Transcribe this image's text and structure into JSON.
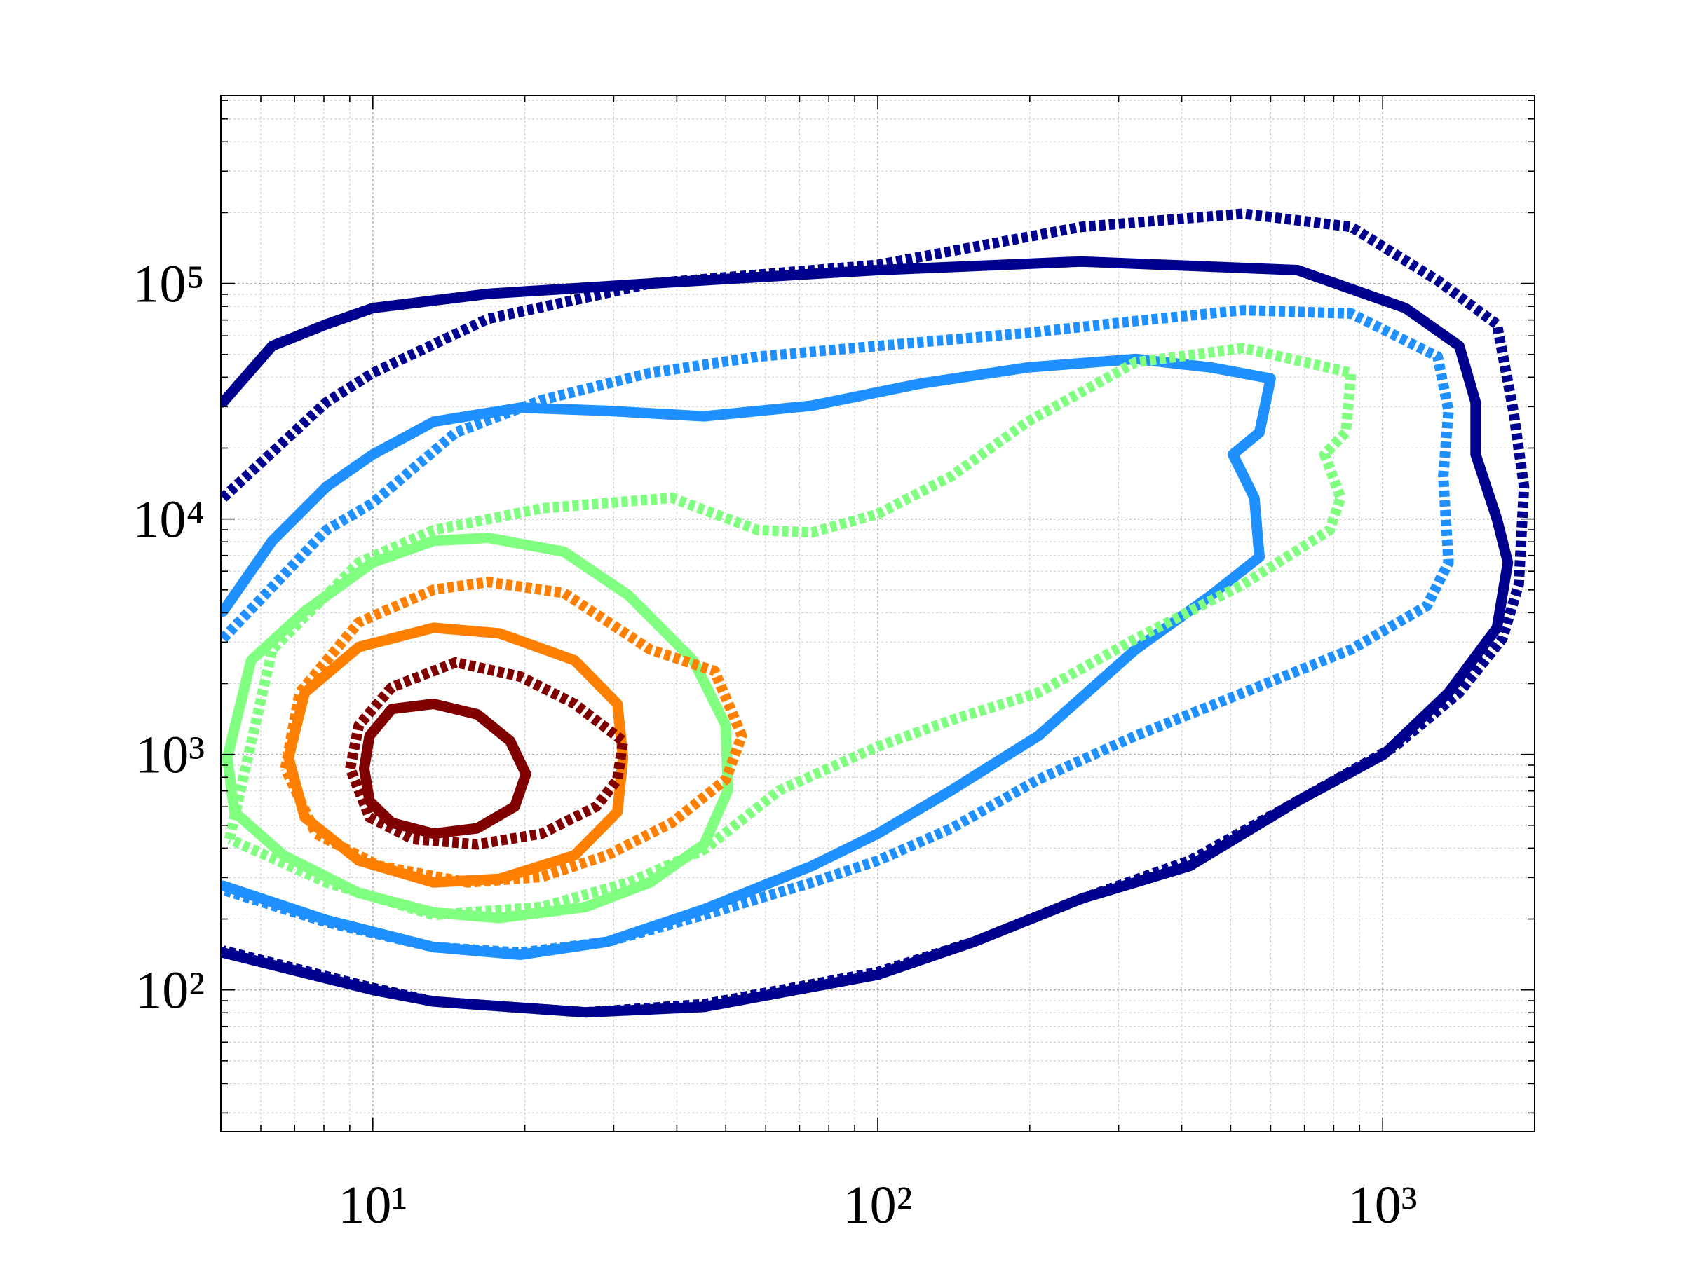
{
  "chart_data": {
    "type": "line",
    "xscale": "log",
    "yscale": "log",
    "xlim": [
      5,
      2000
    ],
    "ylim": [
      25,
      630000
    ],
    "xticks": [
      {
        "value": 10,
        "label": "10¹"
      },
      {
        "value": 100,
        "label": "10²"
      },
      {
        "value": 1000,
        "label": "10³"
      }
    ],
    "yticks": [
      {
        "value": 100,
        "label": "10²"
      },
      {
        "value": 1000,
        "label": "10³"
      },
      {
        "value": 10000,
        "label": "10⁴"
      },
      {
        "value": 100000,
        "label": "10⁵"
      }
    ],
    "xminorticks": [
      6,
      7,
      8,
      9,
      20,
      30,
      40,
      50,
      60,
      70,
      80,
      90,
      200,
      300,
      400,
      500,
      600,
      700,
      800,
      900
    ],
    "yminorticks": [
      30,
      40,
      50,
      60,
      70,
      80,
      90,
      200,
      300,
      400,
      500,
      600,
      700,
      800,
      900,
      2000,
      3000,
      4000,
      5000,
      6000,
      7000,
      8000,
      9000,
      20000,
      30000,
      40000,
      50000,
      60000,
      70000,
      80000,
      90000,
      200000,
      300000,
      400000,
      500000,
      600000
    ],
    "grid": true,
    "minor_grid": true,
    "series": [
      {
        "color": "#00008f",
        "style": "solid",
        "x": [
          5.05,
          6.32,
          8.09,
          10,
          16.9,
          35.4,
          100,
          253,
          678,
          1109,
          1418,
          1528,
          1528,
          1684,
          1770,
          1684,
          1350,
          1005,
          678,
          415,
          253,
          155,
          100,
          45.3,
          26.4,
          13.2,
          10,
          5.05
        ],
        "values": [
          31300,
          54300,
          67100,
          78700,
          90400,
          100000,
          114000,
          124000,
          114000,
          78700,
          54300,
          31300,
          18800,
          9980,
          6530,
          3450,
          1830,
          1000,
          634,
          336,
          244,
          160,
          116,
          84.7,
          80.3,
          89.3,
          100,
          144
        ]
      },
      {
        "color": "#00008f",
        "style": "dashed",
        "x": [
          5.05,
          8.09,
          10,
          16.9,
          35.4,
          100,
          253,
          530,
          866,
          1285,
          1684,
          1815,
          1905,
          1860,
          1726,
          1418,
          1057,
          678,
          415,
          253,
          155,
          100,
          45.3,
          26.4,
          13.2,
          10,
          5.05
        ],
        "values": [
          12300,
          31300,
          41700,
          70800,
          100000,
          120000,
          174000,
          198000,
          174000,
          103000,
          67100,
          28800,
          13700,
          5280,
          3100,
          1830,
          1080,
          634,
          354,
          244,
          160,
          119,
          87,
          80.3,
          89.3,
          102,
          147
        ]
      },
      {
        "color": "#1e90ff",
        "style": "solid",
        "x": [
          5.05,
          6.32,
          8.09,
          10,
          13.2,
          19.6,
          29.1,
          45.3,
          74.1,
          121,
          198,
          324,
          457,
          600,
          570,
          505,
          557,
          570,
          457,
          324,
          208,
          140,
          100,
          74.1,
          45.3,
          29.1,
          19.6,
          13.2,
          8.09,
          5.05
        ],
        "values": [
          4050,
          8070,
          13700,
          18800,
          25900,
          29700,
          28800,
          27300,
          30300,
          37500,
          44000,
          47800,
          44000,
          39500,
          23300,
          18800,
          12300,
          6890,
          4740,
          2790,
          1200,
          705,
          461,
          336,
          220,
          160,
          141,
          152,
          198,
          277
        ]
      },
      {
        "color": "#1e90ff",
        "style": "dashed",
        "x": [
          5.05,
          8.09,
          10,
          14.6,
          21.6,
          35.4,
          57.9,
          100,
          198,
          324,
          530,
          866,
          1285,
          1350,
          1318,
          1350,
          1224,
          866,
          530,
          324,
          208,
          140,
          100,
          74.1,
          45.3,
          29.1,
          19.6,
          13.2,
          8.09,
          5.05
        ],
        "values": [
          3100,
          8970,
          11700,
          23300,
          32000,
          41700,
          48900,
          54300,
          61700,
          69300,
          77100,
          74600,
          48900,
          28800,
          15200,
          6530,
          4280,
          2790,
          1830,
          1200,
          783,
          486,
          354,
          286,
          208,
          160,
          144,
          152,
          194,
          266
        ]
      },
      {
        "color": "#80ff80",
        "style": "solid",
        "x": [
          5.15,
          5.74,
          7.33,
          10,
          13.2,
          16.9,
          23.9,
          32.1,
          43.1,
          50.0,
          50.5,
          45.3,
          35.4,
          26.4,
          17.8,
          13.2,
          9.38,
          6.65,
          5.32,
          5.15
        ],
        "values": [
          969,
          2510,
          4050,
          6530,
          8070,
          8320,
          7260,
          4740,
          2510,
          1330,
          705,
          415,
          286,
          225,
          202,
          213,
          258,
          373,
          570,
          969
        ]
      },
      {
        "color": "#80ff80",
        "style": "dashed",
        "x": [
          5.2,
          6.32,
          9.38,
          13.2,
          21.6,
          39.1,
          57.9,
          74.1,
          100,
          140,
          198,
          324,
          530,
          866,
          845,
          767,
          826,
          785,
          530,
          324,
          208,
          140,
          100,
          63.9,
          45.3,
          32.1,
          21.6,
          13.2,
          8.09,
          5.2
        ],
        "values": [
          437,
          2790,
          6530,
          8970,
          11100,
          12300,
          8970,
          8770,
          10500,
          15200,
          25900,
          46300,
          53200,
          41700,
          23300,
          18800,
          12300,
          8970,
          5280,
          3100,
          1830,
          1400,
          1080,
          705,
          394,
          286,
          225,
          208,
          286,
          437
        ]
      },
      {
        "color": "#ff8000",
        "style": "solid",
        "x": [
          6.81,
          7.33,
          9.38,
          13.2,
          17.8,
          25.1,
          30.5,
          31.3,
          30.5,
          25.1,
          17.8,
          13.2,
          9.38,
          7.33,
          6.81
        ],
        "values": [
          969,
          1830,
          2860,
          3450,
          3270,
          2510,
          1640,
          969,
          570,
          373,
          296,
          286,
          354,
          541,
          969
        ]
      },
      {
        "color": "#ff8000",
        "style": "dashed",
        "x": [
          6.71,
          7.16,
          9.38,
          13.2,
          16.9,
          23.9,
          35.4,
          47.5,
          53.8,
          50.0,
          39.1,
          29.1,
          21.6,
          15.4,
          10.3,
          7.71,
          6.71
        ],
        "values": [
          871,
          1830,
          3640,
          5010,
          5400,
          4850,
          2790,
          2260,
          1200,
          783,
          513,
          373,
          302,
          286,
          336,
          461,
          871
        ]
      },
      {
        "color": "#800000",
        "style": "solid",
        "x": [
          9.61,
          9.85,
          10.9,
          13.2,
          16.1,
          18.7,
          20.1,
          19.1,
          16.1,
          13.2,
          10.9,
          9.85,
          9.61
        ],
        "values": [
          871,
          1200,
          1560,
          1640,
          1480,
          1140,
          826,
          601,
          486,
          461,
          513,
          634,
          871
        ]
      },
      {
        "color": "#800000",
        "style": "dashed",
        "x": [
          9.02,
          9.38,
          10.9,
          14.6,
          19.6,
          25.1,
          31.3,
          30.5,
          27.7,
          21.6,
          16.1,
          12.0,
          9.85,
          9.02
        ],
        "values": [
          871,
          1330,
          1930,
          2460,
          2140,
          1640,
          1140,
          783,
          601,
          461,
          415,
          437,
          541,
          871
        ]
      }
    ]
  }
}
